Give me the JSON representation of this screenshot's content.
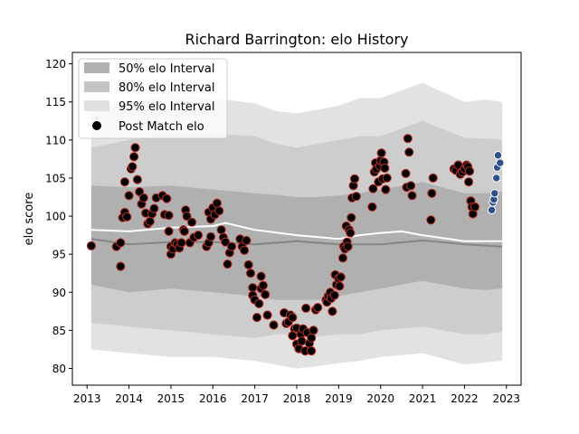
{
  "chart_data": {
    "type": "scatter",
    "title": "Richard Barrington: elo History",
    "ylabel": "elo score",
    "xlabel": "",
    "xlim": [
      2012.65,
      2023.35
    ],
    "ylim": [
      77.8,
      121.5
    ],
    "x_ticks": [
      2013,
      2014,
      2015,
      2016,
      2017,
      2018,
      2019,
      2020,
      2021,
      2022,
      2023
    ],
    "y_ticks": [
      80,
      85,
      90,
      95,
      100,
      105,
      110,
      115,
      120
    ],
    "grid": false,
    "legend_position": "top-left",
    "legend": [
      {
        "label": "50% elo Interval",
        "kind": "band",
        "color": "#b0b0b0"
      },
      {
        "label": "80% elo Interval",
        "kind": "band",
        "color": "#c4c4c4"
      },
      {
        "label": "95% elo Interval",
        "kind": "band",
        "color": "#e0e0e0"
      },
      {
        "label": "Post Match elo",
        "kind": "point",
        "color": "#000000"
      }
    ],
    "colors": {
      "band50": "#b0b0b0",
      "band80": "#cdcdcd",
      "band95": "#e2e2e2",
      "median_line": "#858585",
      "mean_line": "#ffffff",
      "point_fill": "#000000",
      "point_edge": "#c0302a",
      "recent_point_fill": "#2f4f8a",
      "recent_point_edge": "#ffffff"
    },
    "bands": {
      "x": [
        2013.1,
        2014.0,
        2015.0,
        2016.0,
        2017.0,
        2017.5,
        2018.0,
        2018.5,
        2019.0,
        2019.5,
        2020.0,
        2021.0,
        2022.0,
        2022.5,
        2022.9
      ],
      "p95_hi": [
        113.5,
        115.0,
        116.0,
        115.5,
        114.8,
        113.8,
        113.5,
        114.0,
        114.5,
        115.5,
        115.5,
        117.5,
        115.0,
        115.3,
        115.0
      ],
      "p80_hi": [
        109.0,
        110.0,
        111.0,
        110.8,
        110.5,
        109.5,
        109.0,
        109.5,
        110.0,
        110.5,
        110.5,
        112.5,
        110.3,
        110.2,
        110.0
      ],
      "p50_hi": [
        104.0,
        103.8,
        104.0,
        103.5,
        103.0,
        102.8,
        102.5,
        102.5,
        102.7,
        103.0,
        103.5,
        104.5,
        103.0,
        103.0,
        103.2
      ],
      "p50_lo": [
        91.0,
        90.0,
        90.5,
        90.0,
        89.5,
        89.0,
        89.0,
        89.0,
        89.5,
        90.0,
        90.5,
        91.5,
        90.5,
        90.3,
        90.5
      ],
      "p80_lo": [
        86.0,
        85.5,
        85.0,
        84.5,
        84.0,
        84.5,
        84.5,
        84.2,
        84.5,
        84.5,
        85.0,
        85.5,
        84.5,
        84.5,
        84.8
      ],
      "p95_lo": [
        82.5,
        82.0,
        81.5,
        81.5,
        81.0,
        80.5,
        80.0,
        80.3,
        80.7,
        81.0,
        81.5,
        82.0,
        80.5,
        80.8,
        81.0
      ]
    },
    "median_line": {
      "x": [
        2013.1,
        2014.0,
        2015.0,
        2016.0,
        2017.0,
        2018.0,
        2019.0,
        2020.0,
        2021.0,
        2022.0,
        2022.9
      ],
      "y": [
        97.0,
        96.3,
        96.6,
        96.6,
        96.3,
        96.7,
        96.3,
        96.3,
        96.8,
        96.3,
        96.0
      ]
    },
    "mean_line": {
      "x": [
        2013.1,
        2014.0,
        2015.0,
        2016.0,
        2016.3,
        2017.0,
        2018.0,
        2019.0,
        2019.5,
        2020.0,
        2020.5,
        2021.0,
        2022.0,
        2022.9
      ],
      "y": [
        98.2,
        98.0,
        98.5,
        98.7,
        99.1,
        98.2,
        97.5,
        97.0,
        97.5,
        97.8,
        98.0,
        97.5,
        96.7,
        96.7
      ]
    },
    "points": [
      {
        "x": 2013.1,
        "y": 96.1
      },
      {
        "x": 2013.7,
        "y": 96.0
      },
      {
        "x": 2013.8,
        "y": 93.4
      },
      {
        "x": 2013.8,
        "y": 96.5
      },
      {
        "x": 2013.85,
        "y": 99.8
      },
      {
        "x": 2013.9,
        "y": 100.5
      },
      {
        "x": 2013.95,
        "y": 99.9
      },
      {
        "x": 2013.9,
        "y": 104.5
      },
      {
        "x": 2014.0,
        "y": 102.7
      },
      {
        "x": 2014.05,
        "y": 106.2
      },
      {
        "x": 2014.08,
        "y": 106.5
      },
      {
        "x": 2014.12,
        "y": 107.8
      },
      {
        "x": 2014.15,
        "y": 109.0
      },
      {
        "x": 2014.2,
        "y": 104.8
      },
      {
        "x": 2014.25,
        "y": 103.2
      },
      {
        "x": 2014.3,
        "y": 101.6
      },
      {
        "x": 2014.35,
        "y": 102.4
      },
      {
        "x": 2014.4,
        "y": 100.4
      },
      {
        "x": 2014.45,
        "y": 99.0
      },
      {
        "x": 2014.5,
        "y": 99.3
      },
      {
        "x": 2014.55,
        "y": 100.3
      },
      {
        "x": 2014.6,
        "y": 101.0
      },
      {
        "x": 2014.65,
        "y": 102.4
      },
      {
        "x": 2014.8,
        "y": 102.7
      },
      {
        "x": 2014.85,
        "y": 100.2
      },
      {
        "x": 2014.9,
        "y": 102.3
      },
      {
        "x": 2014.95,
        "y": 100.1
      },
      {
        "x": 2014.95,
        "y": 98.0
      },
      {
        "x": 2015.0,
        "y": 96.0
      },
      {
        "x": 2015.0,
        "y": 95.0
      },
      {
        "x": 2015.05,
        "y": 95.7
      },
      {
        "x": 2015.1,
        "y": 96.5
      },
      {
        "x": 2015.15,
        "y": 96.3
      },
      {
        "x": 2015.2,
        "y": 95.8
      },
      {
        "x": 2015.25,
        "y": 96.5
      },
      {
        "x": 2015.3,
        "y": 98.2
      },
      {
        "x": 2015.32,
        "y": 98.0
      },
      {
        "x": 2015.35,
        "y": 100.8
      },
      {
        "x": 2015.38,
        "y": 100.0
      },
      {
        "x": 2015.45,
        "y": 96.5
      },
      {
        "x": 2015.5,
        "y": 99.2
      },
      {
        "x": 2015.55,
        "y": 97.2
      },
      {
        "x": 2015.65,
        "y": 97.5
      },
      {
        "x": 2015.85,
        "y": 96.0
      },
      {
        "x": 2015.9,
        "y": 96.5
      },
      {
        "x": 2015.95,
        "y": 97.3
      },
      {
        "x": 2015.9,
        "y": 100.5
      },
      {
        "x": 2015.95,
        "y": 99.6
      },
      {
        "x": 2016.0,
        "y": 101.1
      },
      {
        "x": 2016.05,
        "y": 100.2
      },
      {
        "x": 2016.1,
        "y": 101.7
      },
      {
        "x": 2016.15,
        "y": 100.7
      },
      {
        "x": 2016.2,
        "y": 98.2
      },
      {
        "x": 2016.25,
        "y": 97.2
      },
      {
        "x": 2016.3,
        "y": 96.6
      },
      {
        "x": 2016.35,
        "y": 93.7
      },
      {
        "x": 2016.4,
        "y": 95.2
      },
      {
        "x": 2016.45,
        "y": 96.0
      },
      {
        "x": 2016.65,
        "y": 97.0
      },
      {
        "x": 2016.7,
        "y": 96.0
      },
      {
        "x": 2016.75,
        "y": 95.5
      },
      {
        "x": 2016.8,
        "y": 96.8
      },
      {
        "x": 2016.85,
        "y": 93.6
      },
      {
        "x": 2016.9,
        "y": 92.5
      },
      {
        "x": 2016.95,
        "y": 90.6
      },
      {
        "x": 2016.95,
        "y": 89.6
      },
      {
        "x": 2017.0,
        "y": 89.0
      },
      {
        "x": 2017.05,
        "y": 86.7
      },
      {
        "x": 2017.1,
        "y": 88.5
      },
      {
        "x": 2017.15,
        "y": 90.5
      },
      {
        "x": 2017.15,
        "y": 92.1
      },
      {
        "x": 2017.2,
        "y": 90.9
      },
      {
        "x": 2017.25,
        "y": 89.7
      },
      {
        "x": 2017.3,
        "y": 87.0
      },
      {
        "x": 2017.45,
        "y": 85.7
      },
      {
        "x": 2017.7,
        "y": 87.3
      },
      {
        "x": 2017.75,
        "y": 85.9
      },
      {
        "x": 2017.8,
        "y": 86.1
      },
      {
        "x": 2017.85,
        "y": 87.0
      },
      {
        "x": 2017.9,
        "y": 86.7
      },
      {
        "x": 2017.95,
        "y": 85.2
      },
      {
        "x": 2017.9,
        "y": 84.3
      },
      {
        "x": 2018.0,
        "y": 85.3
      },
      {
        "x": 2018.0,
        "y": 83.2
      },
      {
        "x": 2018.05,
        "y": 82.6
      },
      {
        "x": 2018.1,
        "y": 84.5
      },
      {
        "x": 2018.12,
        "y": 83.6
      },
      {
        "x": 2018.15,
        "y": 85.2
      },
      {
        "x": 2018.2,
        "y": 82.3
      },
      {
        "x": 2018.22,
        "y": 87.9
      },
      {
        "x": 2018.25,
        "y": 84.7
      },
      {
        "x": 2018.3,
        "y": 83.3
      },
      {
        "x": 2018.35,
        "y": 82.3
      },
      {
        "x": 2018.35,
        "y": 84.0
      },
      {
        "x": 2018.4,
        "y": 85.0
      },
      {
        "x": 2018.45,
        "y": 87.7
      },
      {
        "x": 2018.5,
        "y": 88.0
      },
      {
        "x": 2018.7,
        "y": 89.0
      },
      {
        "x": 2018.72,
        "y": 88.7
      },
      {
        "x": 2018.75,
        "y": 89.5
      },
      {
        "x": 2018.8,
        "y": 90.0
      },
      {
        "x": 2018.82,
        "y": 89.2
      },
      {
        "x": 2018.85,
        "y": 87.5
      },
      {
        "x": 2018.9,
        "y": 89.6
      },
      {
        "x": 2018.92,
        "y": 92.3
      },
      {
        "x": 2018.95,
        "y": 91.0
      },
      {
        "x": 2019.0,
        "y": 91.8
      },
      {
        "x": 2019.02,
        "y": 90.8
      },
      {
        "x": 2019.05,
        "y": 92.0
      },
      {
        "x": 2019.1,
        "y": 94.5
      },
      {
        "x": 2019.12,
        "y": 96.0
      },
      {
        "x": 2019.15,
        "y": 95.7
      },
      {
        "x": 2019.18,
        "y": 98.7
      },
      {
        "x": 2019.2,
        "y": 96.6
      },
      {
        "x": 2019.22,
        "y": 96.0
      },
      {
        "x": 2019.25,
        "y": 98.2
      },
      {
        "x": 2019.28,
        "y": 97.8
      },
      {
        "x": 2019.3,
        "y": 99.8
      },
      {
        "x": 2019.32,
        "y": 102.4
      },
      {
        "x": 2019.35,
        "y": 104.0
      },
      {
        "x": 2019.38,
        "y": 104.9
      },
      {
        "x": 2019.42,
        "y": 102.6
      },
      {
        "x": 2019.8,
        "y": 101.2
      },
      {
        "x": 2019.82,
        "y": 103.6
      },
      {
        "x": 2019.85,
        "y": 105.8
      },
      {
        "x": 2019.88,
        "y": 107.0
      },
      {
        "x": 2019.9,
        "y": 106.2
      },
      {
        "x": 2019.95,
        "y": 104.5
      },
      {
        "x": 2019.98,
        "y": 106.6
      },
      {
        "x": 2020.0,
        "y": 107.3
      },
      {
        "x": 2020.02,
        "y": 108.3
      },
      {
        "x": 2020.05,
        "y": 104.9
      },
      {
        "x": 2020.08,
        "y": 107.1
      },
      {
        "x": 2020.1,
        "y": 106.3
      },
      {
        "x": 2020.12,
        "y": 103.5
      },
      {
        "x": 2020.15,
        "y": 105.0
      },
      {
        "x": 2020.6,
        "y": 105.6
      },
      {
        "x": 2020.62,
        "y": 103.8
      },
      {
        "x": 2020.65,
        "y": 110.2
      },
      {
        "x": 2020.68,
        "y": 108.4
      },
      {
        "x": 2020.72,
        "y": 104.0
      },
      {
        "x": 2020.75,
        "y": 102.7
      },
      {
        "x": 2021.2,
        "y": 99.5
      },
      {
        "x": 2021.22,
        "y": 103.0
      },
      {
        "x": 2021.25,
        "y": 105.0
      },
      {
        "x": 2021.75,
        "y": 106.2
      },
      {
        "x": 2021.8,
        "y": 106.0
      },
      {
        "x": 2021.85,
        "y": 106.7
      },
      {
        "x": 2021.9,
        "y": 105.5
      },
      {
        "x": 2021.95,
        "y": 105.8
      },
      {
        "x": 2022.0,
        "y": 106.2
      },
      {
        "x": 2022.05,
        "y": 106.7
      },
      {
        "x": 2022.08,
        "y": 106.5
      },
      {
        "x": 2022.1,
        "y": 104.5
      },
      {
        "x": 2022.12,
        "y": 105.9
      },
      {
        "x": 2022.15,
        "y": 102.0
      },
      {
        "x": 2022.18,
        "y": 101.2
      },
      {
        "x": 2022.2,
        "y": 100.3
      },
      {
        "x": 2022.25,
        "y": 101.2
      }
    ],
    "recent_points": [
      {
        "x": 2022.65,
        "y": 100.8
      },
      {
        "x": 2022.68,
        "y": 101.8
      },
      {
        "x": 2022.7,
        "y": 102.2
      },
      {
        "x": 2022.72,
        "y": 103.0
      },
      {
        "x": 2022.76,
        "y": 105.0
      },
      {
        "x": 2022.78,
        "y": 106.4
      },
      {
        "x": 2022.8,
        "y": 108.0
      },
      {
        "x": 2022.85,
        "y": 107.0
      }
    ]
  }
}
